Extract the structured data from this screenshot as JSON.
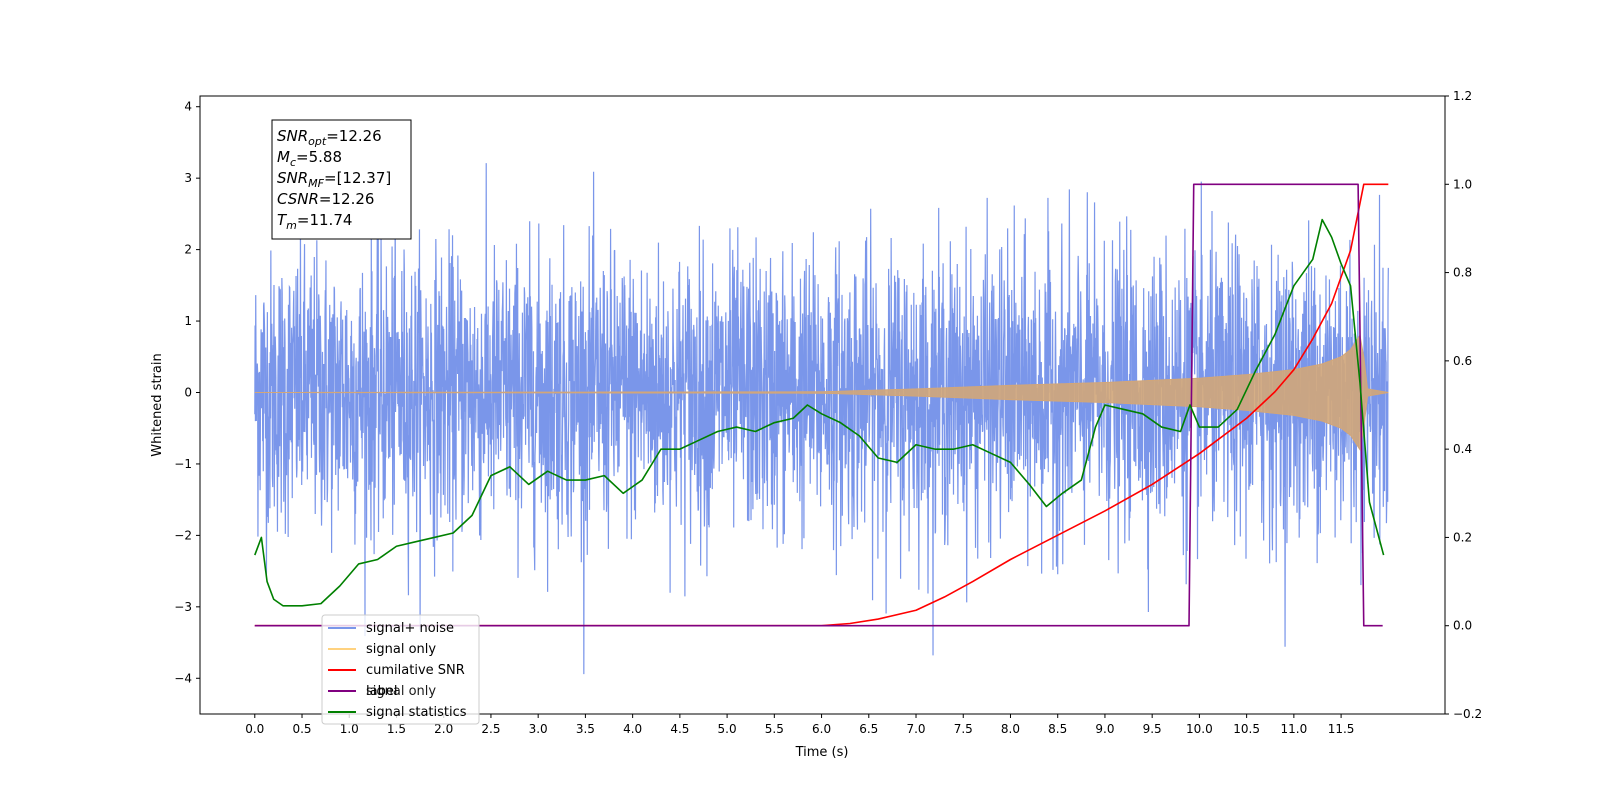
{
  "chart_data": {
    "type": "line",
    "title": "",
    "xlabel": "Time (s)",
    "ylabel_left": "Whitened strain",
    "ylabel_right": "",
    "xlim": [
      -0.58,
      12.6
    ],
    "ylim_left": [
      -4.5,
      4.15
    ],
    "ylim_right": [
      -0.2,
      1.2
    ],
    "x_ticks": [
      "0.0",
      "0.5",
      "1.0",
      "1.5",
      "2.0",
      "2.5",
      "3.0",
      "3.5",
      "4.0",
      "4.5",
      "5.0",
      "5.5",
      "6.0",
      "6.5",
      "7.0",
      "7.5",
      "8.0",
      "8.5",
      "9.0",
      "9.5",
      "10.0",
      "10.5",
      "11.0",
      "11.5"
    ],
    "y_ticks_left": [
      "4",
      "3",
      "2",
      "1",
      "0",
      "−1",
      "−2",
      "−3",
      "−4"
    ],
    "y_ticks_right": [
      "1.2",
      "1.0",
      "0.8",
      "0.6",
      "0.4",
      "0.2",
      "0.0",
      "−0.2"
    ],
    "grid": false,
    "legend_position": "lower-left",
    "info_box": [
      {
        "sym": "SNR",
        "sub": "opt",
        "val": "=12.26"
      },
      {
        "sym": "M",
        "sub": "c",
        "val": "=5.88"
      },
      {
        "sym": "SNR",
        "sub": "MF",
        "val": "=[12.37]"
      },
      {
        "sym": "CSNR",
        "sub": "",
        "val": "=12.26"
      },
      {
        "sym": "T",
        "sub": "m",
        "val": "=11.74"
      }
    ],
    "legend": [
      {
        "label": "signal+ noise",
        "color": "#4169e1",
        "alpha": 0.7
      },
      {
        "label": "signal only",
        "color": "#ffa500",
        "alpha": 0.5
      },
      {
        "label": "cumilative SNR",
        "color": "#ff0000",
        "alpha": 1
      },
      {
        "label": "label",
        "color": "#800080",
        "alpha": 1
      },
      {
        "label": "signal statistics",
        "color": "#008000",
        "alpha": 1
      }
    ],
    "legend_hidden_label": "signal only",
    "series": [
      {
        "name": "signal+ noise",
        "axis": "left",
        "color": "#4169e1",
        "description_values": {
          "x_start": 0.0,
          "x_end": 12.0,
          "typical_range": [
            -2.3,
            2.4
          ],
          "max": 3.75,
          "min": -4.1
        }
      },
      {
        "name": "signal only",
        "axis": "left",
        "color": "#d2a679",
        "envelope": {
          "x": [
            0.0,
            6.0,
            7.0,
            8.0,
            9.0,
            10.0,
            10.5,
            11.0,
            11.3,
            11.5,
            11.6,
            11.7,
            11.74,
            11.78,
            12.0
          ],
          "amp": [
            0.0,
            0.01,
            0.05,
            0.1,
            0.14,
            0.2,
            0.25,
            0.32,
            0.4,
            0.5,
            0.6,
            0.8,
            0.5,
            0.05,
            0.0
          ]
        }
      },
      {
        "name": "cumilative SNR",
        "axis": "right",
        "color": "#ff0000",
        "x": [
          0.0,
          6.0,
          6.3,
          6.6,
          7.0,
          7.3,
          7.6,
          8.0,
          8.5,
          9.0,
          9.5,
          10.0,
          10.5,
          10.8,
          11.0,
          11.2,
          11.4,
          11.6,
          11.74,
          12.0
        ],
        "y": [
          0.0,
          0.0,
          0.005,
          0.015,
          0.035,
          0.065,
          0.1,
          0.15,
          0.205,
          0.26,
          0.32,
          0.39,
          0.47,
          0.53,
          0.58,
          0.65,
          0.73,
          0.85,
          1.0,
          1.0
        ]
      },
      {
        "name": "label",
        "axis": "right",
        "color": "#800080",
        "x": [
          0.0,
          9.89,
          9.94,
          11.68,
          11.74,
          11.94
        ],
        "y": [
          0.0,
          0.0,
          1.0,
          1.0,
          0.0,
          0.0
        ]
      },
      {
        "name": "signal statistics",
        "axis": "right",
        "color": "#008000",
        "x": [
          0.0,
          0.07,
          0.13,
          0.2,
          0.3,
          0.4,
          0.5,
          0.7,
          0.9,
          1.1,
          1.3,
          1.5,
          1.7,
          1.9,
          2.1,
          2.3,
          2.5,
          2.7,
          2.9,
          3.1,
          3.3,
          3.5,
          3.7,
          3.9,
          4.1,
          4.3,
          4.5,
          4.7,
          4.9,
          5.1,
          5.3,
          5.5,
          5.7,
          5.85,
          6.0,
          6.2,
          6.4,
          6.6,
          6.8,
          7.0,
          7.2,
          7.4,
          7.6,
          7.8,
          8.0,
          8.2,
          8.38,
          8.55,
          8.75,
          8.9,
          9.0,
          9.2,
          9.4,
          9.6,
          9.8,
          9.9,
          10.0,
          10.2,
          10.4,
          10.6,
          10.8,
          11.0,
          11.2,
          11.3,
          11.4,
          11.5,
          11.6,
          11.7,
          11.8,
          11.95
        ],
        "y": [
          0.16,
          0.2,
          0.1,
          0.06,
          0.045,
          0.045,
          0.045,
          0.05,
          0.09,
          0.14,
          0.15,
          0.18,
          0.19,
          0.2,
          0.21,
          0.25,
          0.34,
          0.36,
          0.32,
          0.35,
          0.33,
          0.33,
          0.34,
          0.3,
          0.33,
          0.4,
          0.4,
          0.42,
          0.44,
          0.45,
          0.44,
          0.46,
          0.47,
          0.5,
          0.48,
          0.46,
          0.43,
          0.38,
          0.37,
          0.41,
          0.4,
          0.4,
          0.41,
          0.39,
          0.37,
          0.32,
          0.27,
          0.3,
          0.33,
          0.45,
          0.5,
          0.49,
          0.48,
          0.45,
          0.44,
          0.5,
          0.45,
          0.45,
          0.49,
          0.58,
          0.66,
          0.77,
          0.83,
          0.92,
          0.88,
          0.82,
          0.77,
          0.55,
          0.28,
          0.16
        ]
      }
    ]
  }
}
